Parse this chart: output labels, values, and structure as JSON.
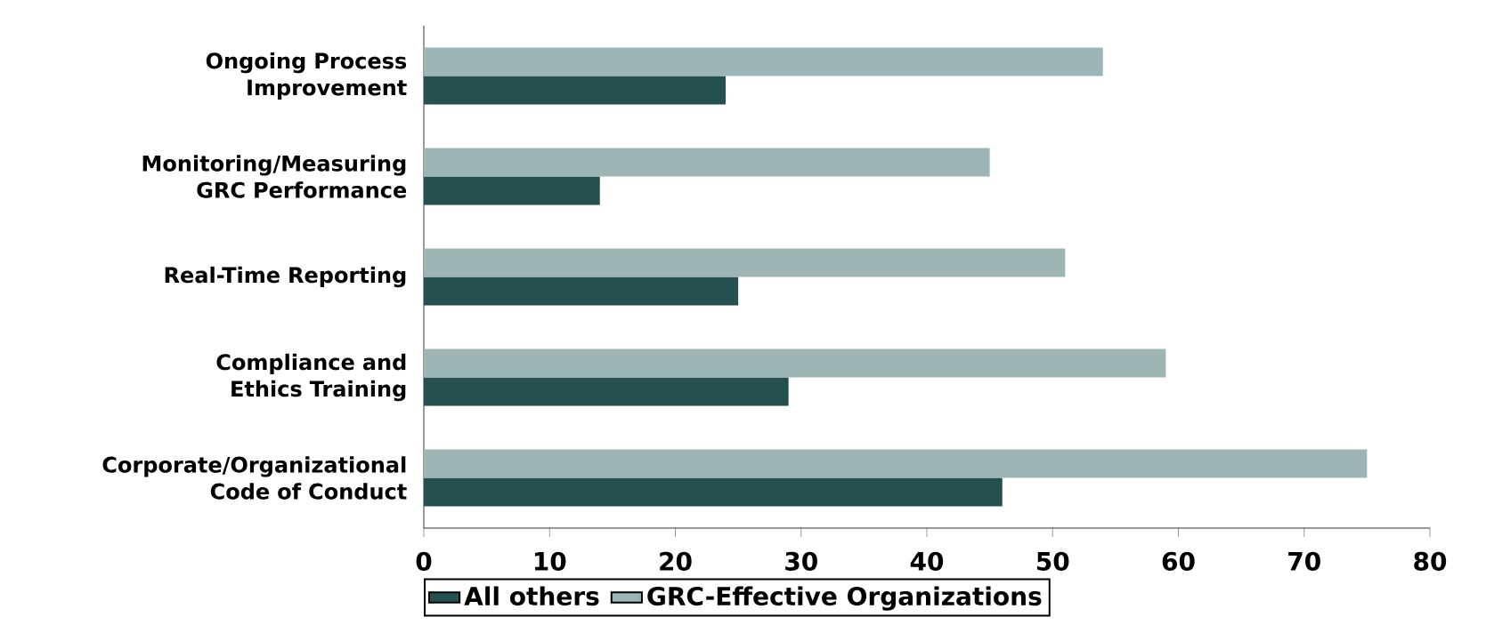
{
  "chart_data": {
    "type": "bar",
    "orientation": "horizontal",
    "categories": [
      "Ongoing Process Improvement",
      "Monitoring/Measuring GRC Performance",
      "Real-Time Reporting",
      "Compliance and Ethics Training",
      "Corporate/Organizational Code of Conduct"
    ],
    "series": [
      {
        "name": "All others",
        "color": "#245050",
        "values": [
          24,
          14,
          25,
          29,
          46
        ]
      },
      {
        "name": "GRC-Effective Organizations",
        "color": "#9db5b5",
        "values": [
          54,
          45,
          51,
          59,
          75
        ]
      }
    ],
    "xlim": [
      0,
      80
    ],
    "xticks": [
      0,
      10,
      20,
      30,
      40,
      50,
      60,
      70,
      80
    ],
    "grid": false,
    "legend": "bottom"
  }
}
